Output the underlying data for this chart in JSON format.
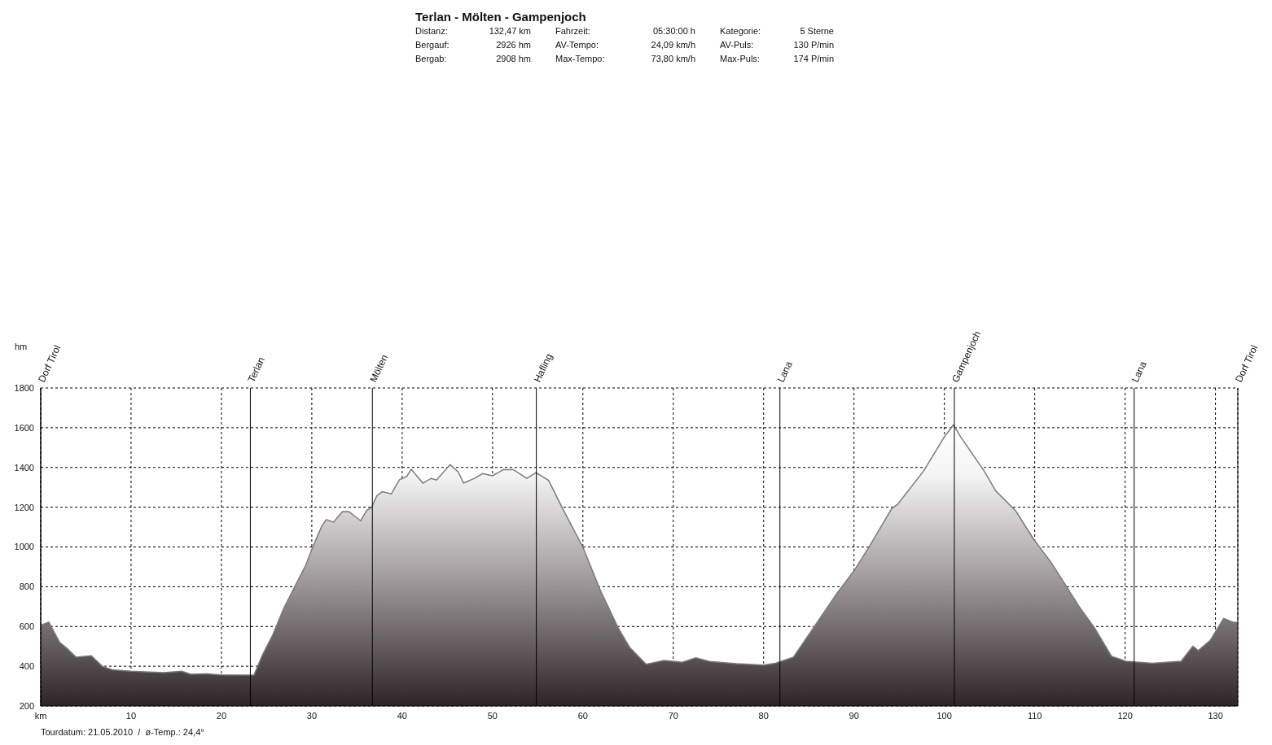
{
  "chart_data": {
    "type": "area",
    "title": "Terlan - Mölten - Gampenjoch",
    "annotations": [
      "Distanz:",
      "132,47 km",
      "Fahrzeit:",
      "05:30:00 h",
      "Kategorie:",
      "5 Sterne",
      "Bergauf:",
      "2926 hm",
      "AV-Tempo:",
      "24,09 km/h",
      "AV-Puls:",
      "130 P/min",
      "Bergab:",
      "2908 hm",
      "Max-Tempo:",
      "73,80 km/h",
      "Max-Puls:",
      "174 P/min",
      "Tourdatum: 21.05.2010  /  ø-Temp.: 24,4°"
    ],
    "ylabel": "hm",
    "x": [
      0,
      0.9,
      2.1,
      2.9,
      3.9,
      5.6,
      6.8,
      7.9,
      10,
      13.6,
      15.6,
      16.6,
      18.4,
      19.9,
      22.7,
      23.6,
      24.5,
      25.7,
      26.9,
      28.1,
      29.3,
      30.1,
      31.1,
      31.6,
      32.4,
      33.4,
      34.1,
      35.4,
      36.1,
      36.6,
      37.2,
      37.8,
      38.8,
      39.7,
      40.5,
      41.0,
      42.3,
      43.2,
      43.8,
      45.3,
      46.2,
      46.8,
      48.0,
      48.9,
      50,
      51.2,
      52.3,
      53.8,
      54.8,
      56.2,
      57.7,
      60.0,
      61.9,
      63.9,
      65.2,
      67.0,
      69.0,
      71.0,
      72.5,
      74.0,
      77.0,
      80.0,
      81.3,
      83.3,
      86.0,
      88.1,
      90,
      91.6,
      94.2,
      94.8,
      97.7,
      100,
      101.0,
      101.8,
      104.4,
      105.7,
      107.9,
      109.9,
      111.8,
      113.4,
      115.0,
      116.6,
      118.5,
      120.1,
      123.0,
      126.2,
      127.5,
      128.1,
      129.4,
      130.9,
      131.9,
      132.47
    ],
    "series": [
      {
        "color": "#7a7a7a",
        "values": [
          606,
          622,
          520,
          490,
          446,
          453,
          400,
          382,
          375,
          368,
          375,
          360,
          362,
          357,
          355,
          355,
          453,
          560,
          692,
          799,
          905,
          999,
          1105,
          1138,
          1125,
          1178,
          1178,
          1132,
          1185,
          1198,
          1258,
          1278,
          1267,
          1338,
          1354,
          1391,
          1321,
          1345,
          1337,
          1414,
          1378,
          1321,
          1345,
          1369,
          1358,
          1389,
          1389,
          1345,
          1374,
          1335,
          1198,
          999,
          785,
          593,
          493,
          410,
          429,
          420,
          442,
          424,
          413,
          406,
          415,
          446,
          626,
          766,
          880,
          995,
          1195,
          1213,
          1382,
          1554,
          1614,
          1554,
          1382,
          1281,
          1181,
          1038,
          923,
          809,
          694,
          594,
          450,
          425,
          415,
          425,
          501,
          479,
          529,
          640,
          622,
          620
        ]
      }
    ],
    "xlim": [
      0,
      132.47
    ],
    "xticks": [
      {
        "value": 0,
        "label": "km"
      },
      10,
      20,
      30,
      40,
      50,
      60,
      70,
      80,
      90,
      100,
      110,
      120,
      130
    ],
    "ylim": [
      200,
      1800
    ],
    "yticks": [
      200,
      400,
      600,
      800,
      1000,
      1200,
      1400,
      1600,
      1800
    ],
    "grid": true,
    "legend": false,
    "ref_lines": [
      {
        "axis": "x",
        "value": 0,
        "label": "Dorf Tirol",
        "color": "#000000"
      },
      {
        "axis": "x",
        "value": 23.2,
        "label": "Terlan",
        "color": "#000000"
      },
      {
        "axis": "x",
        "value": 36.7,
        "label": "Mölten",
        "color": "#000000"
      },
      {
        "axis": "x",
        "value": 54.85,
        "label": "Hafling",
        "color": "#000000"
      },
      {
        "axis": "x",
        "value": 81.8,
        "label": "Lana",
        "color": "#000000"
      },
      {
        "axis": "x",
        "value": 101.1,
        "label": "Gampenjoch",
        "color": "#000000"
      },
      {
        "axis": "x",
        "value": 121.0,
        "label": "Lana",
        "color": "#000000"
      },
      {
        "axis": "x",
        "value": 132.47,
        "label": "Dorf Tirol",
        "color": "#000000"
      }
    ]
  }
}
